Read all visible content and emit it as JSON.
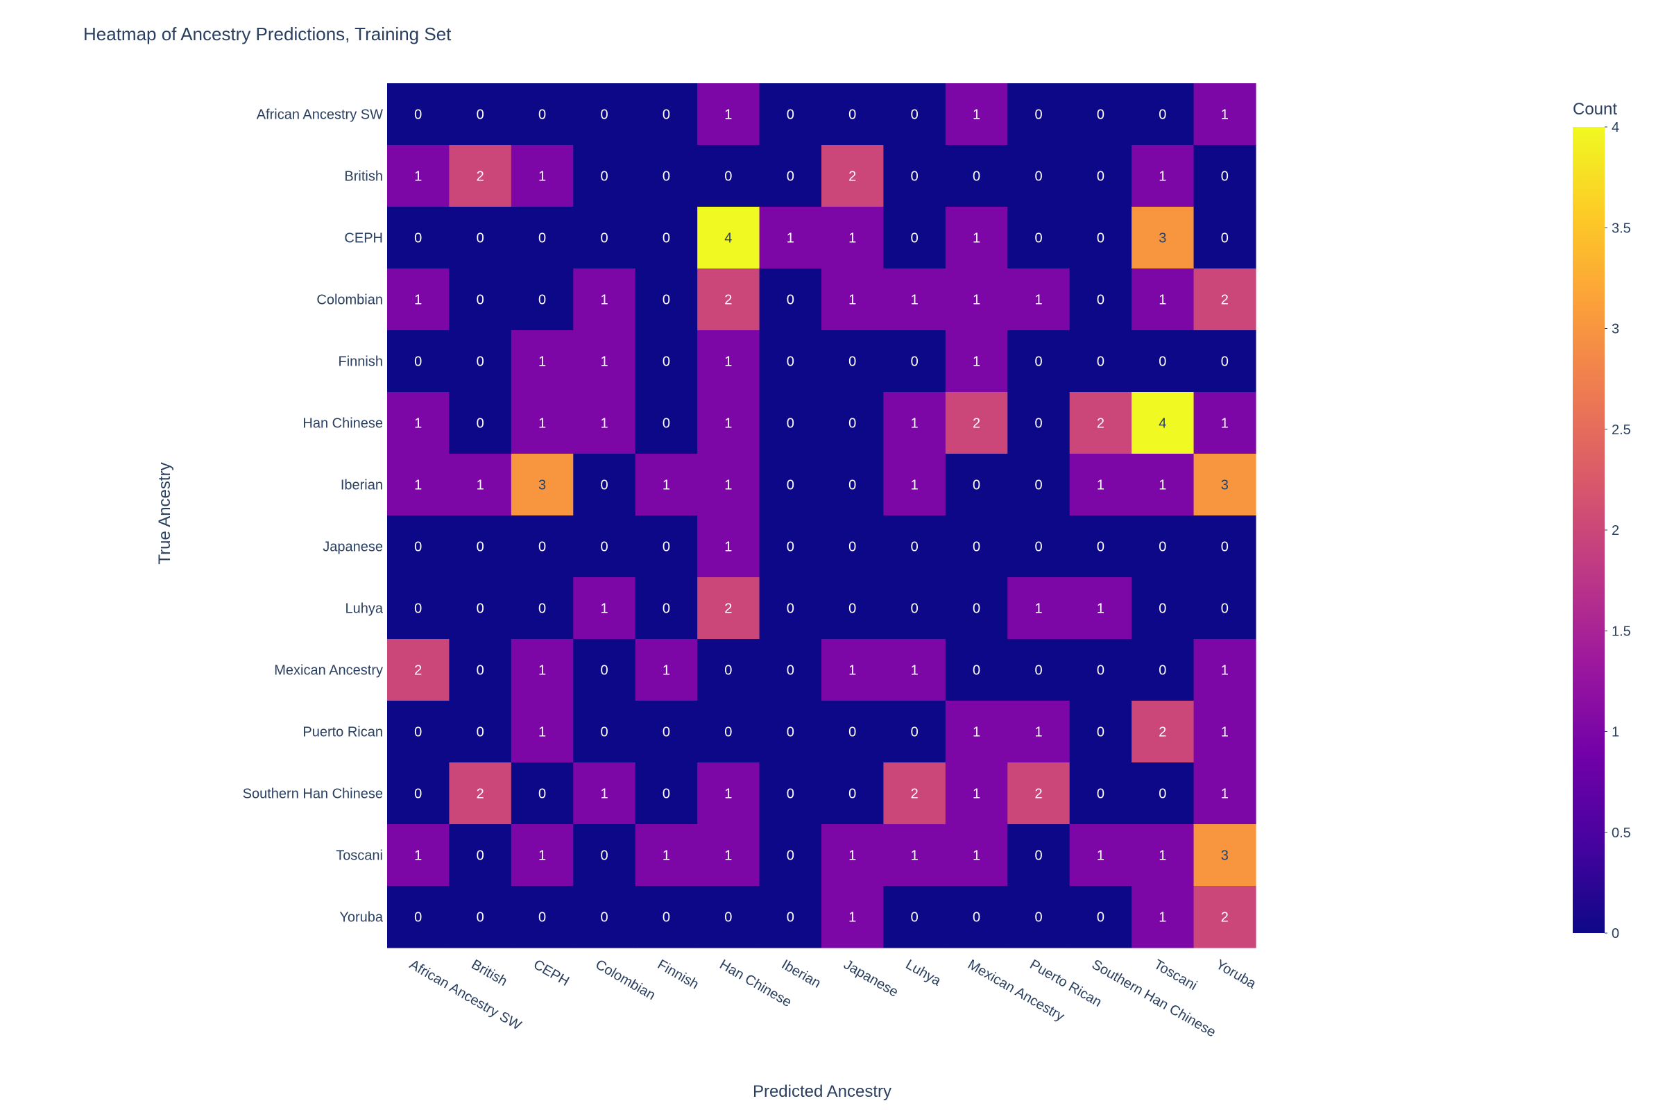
{
  "chart_data": {
    "type": "heatmap",
    "title": "Heatmap of Ancestry Predictions, Training Set",
    "xlabel": "Predicted Ancestry",
    "ylabel": "True Ancestry",
    "x_categories": [
      "African Ancestry SW",
      "British",
      "CEPH",
      "Colombian",
      "Finnish",
      "Han Chinese",
      "Iberian",
      "Japanese",
      "Luhya",
      "Mexican Ancestry",
      "Puerto Rican",
      "Southern Han Chinese",
      "Toscani",
      "Yoruba"
    ],
    "y_categories": [
      "African Ancestry SW",
      "British",
      "CEPH",
      "Colombian",
      "Finnish",
      "Han Chinese",
      "Iberian",
      "Japanese",
      "Luhya",
      "Mexican Ancestry",
      "Puerto Rican",
      "Southern Han Chinese",
      "Toscani",
      "Yoruba"
    ],
    "z": [
      [
        0,
        0,
        0,
        0,
        0,
        1,
        0,
        0,
        0,
        1,
        0,
        0,
        0,
        1
      ],
      [
        1,
        2,
        1,
        0,
        0,
        0,
        0,
        2,
        0,
        0,
        0,
        0,
        1,
        0
      ],
      [
        0,
        0,
        0,
        0,
        0,
        4,
        1,
        1,
        0,
        1,
        0,
        0,
        3,
        0
      ],
      [
        1,
        0,
        0,
        1,
        0,
        2,
        0,
        1,
        1,
        1,
        1,
        0,
        1,
        2
      ],
      [
        0,
        0,
        1,
        1,
        0,
        1,
        0,
        0,
        0,
        1,
        0,
        0,
        0,
        0
      ],
      [
        1,
        0,
        1,
        1,
        0,
        1,
        0,
        0,
        1,
        2,
        0,
        2,
        4,
        1
      ],
      [
        1,
        1,
        3,
        0,
        1,
        1,
        0,
        0,
        1,
        0,
        0,
        1,
        1,
        3
      ],
      [
        0,
        0,
        0,
        0,
        0,
        1,
        0,
        0,
        0,
        0,
        0,
        0,
        0,
        0
      ],
      [
        0,
        0,
        0,
        1,
        0,
        2,
        0,
        0,
        0,
        0,
        1,
        1,
        0,
        0
      ],
      [
        2,
        0,
        1,
        0,
        1,
        0,
        0,
        1,
        1,
        0,
        0,
        0,
        0,
        1
      ],
      [
        0,
        0,
        1,
        0,
        0,
        0,
        0,
        0,
        0,
        1,
        1,
        0,
        2,
        1
      ],
      [
        0,
        2,
        0,
        1,
        0,
        1,
        0,
        0,
        2,
        1,
        2,
        0,
        0,
        1
      ],
      [
        1,
        0,
        1,
        0,
        1,
        1,
        0,
        1,
        1,
        1,
        0,
        1,
        1,
        3
      ],
      [
        0,
        0,
        0,
        0,
        0,
        0,
        0,
        1,
        0,
        0,
        0,
        0,
        1,
        2
      ]
    ],
    "zlim": [
      0,
      4
    ],
    "colorbar": {
      "title": "Count",
      "ticks": [
        0,
        0.5,
        1,
        1.5,
        2,
        2.5,
        3,
        3.5,
        4
      ],
      "tick_labels": [
        "0",
        "0.5",
        "1",
        "1.5",
        "2",
        "2.5",
        "3",
        "3.5",
        "4"
      ]
    },
    "colorscale": [
      "#0d0887",
      "#46039f",
      "#7201a8",
      "#9c179e",
      "#bd3786",
      "#d8576b",
      "#ed7953",
      "#fb9f3a",
      "#fdca26",
      "#f0f921"
    ],
    "colors": {
      "text_dark": "#2a3f5f",
      "label_light": "#ffffff",
      "label_dark": "#2a3f5f",
      "background": "#ffffff"
    }
  }
}
